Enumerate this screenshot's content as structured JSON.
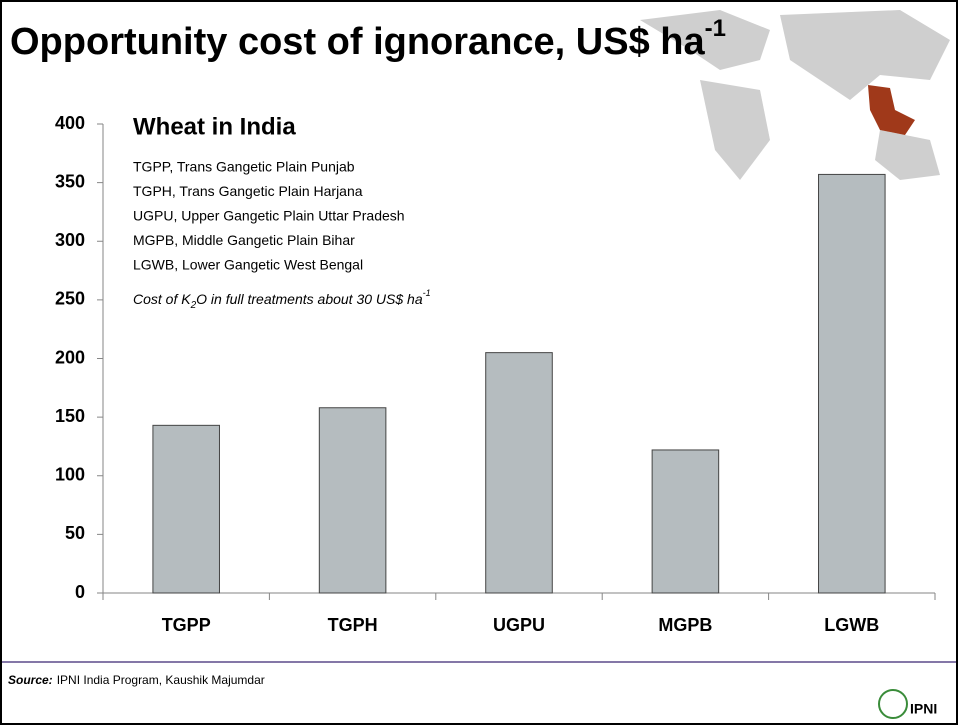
{
  "chart_data": {
    "type": "bar",
    "title": "Opportunity cost of ignorance, US$ ha",
    "title_superscript": "-1",
    "subtitle": "Wheat in India",
    "legend_lines": [
      "TGPP, Trans Gangetic Plain Punjab",
      "TGPH, Trans Gangetic Plain Harjana",
      "UGPU, Upper Gangetic Plain Uttar Pradesh",
      "MGPB, Middle Gangetic Plain Bihar",
      "LGWB, Lower Gangetic West Bengal"
    ],
    "note": [
      "Cost of K",
      "2",
      "O in full treatments about 30 US$ ha",
      "-1"
    ],
    "categories": [
      "TGPP",
      "TGPH",
      "UGPU",
      "MGPB",
      "LGWB"
    ],
    "values": [
      143,
      158,
      205,
      122,
      357
    ],
    "color": "#b5bcbf",
    "ylim": [
      0,
      400
    ],
    "yticks": [
      0,
      50,
      100,
      150,
      200,
      250,
      300,
      350,
      400
    ],
    "source_label": "Source:",
    "source": "IPNI India Program, Kaushik Majumdar",
    "logo": "IPNI"
  }
}
